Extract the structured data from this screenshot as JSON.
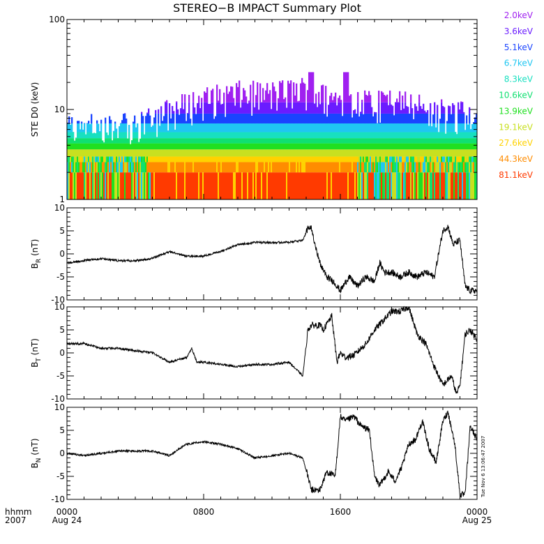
{
  "title": "STEREO−B IMPACT Summary Plot",
  "timestamp": "Tue Nov  6 13:06:47 2007",
  "bottom_axis": {
    "left_labels": [
      "hhmm",
      "2007"
    ],
    "ticks": [
      {
        "label": "0000",
        "date": "Aug 24"
      },
      {
        "label": "0800",
        "date": ""
      },
      {
        "label": "1600",
        "date": ""
      },
      {
        "label": "0000",
        "date": "Aug 25"
      }
    ]
  },
  "colors": {
    "2.0keV": "#a020f0",
    "3.6keV": "#6a1cff",
    "5.1keV": "#1a44ff",
    "6.7keV": "#1fc7f2",
    "8.3keV": "#18e0c0",
    "10.6keV": "#10e070",
    "13.9keV": "#20e020",
    "19.1keV": "#c8e020",
    "27.6keV": "#ffd200",
    "44.3keV": "#ff8c00",
    "81.1keV": "#ff3a00"
  },
  "chart_data": [
    {
      "type": "area",
      "ylabel": "STE D0 (keV)",
      "yscale": "log",
      "ylim": [
        1,
        100
      ],
      "yticks": [
        "1",
        "10",
        "100"
      ],
      "xlim_hours": [
        0,
        24
      ],
      "legend_position": "right",
      "series": [
        {
          "name": "2.0keV",
          "color": "#a020f0"
        },
        {
          "name": "3.6keV",
          "color": "#6a1cff"
        },
        {
          "name": "5.1keV",
          "color": "#1a44ff"
        },
        {
          "name": "6.7keV",
          "color": "#1fc7f2"
        },
        {
          "name": "8.3keV",
          "color": "#18e0c0"
        },
        {
          "name": "10.6keV",
          "color": "#10e070"
        },
        {
          "name": "13.9keV",
          "color": "#20e020"
        },
        {
          "name": "19.1keV",
          "color": "#c8e020"
        },
        {
          "name": "27.6keV",
          "color": "#ffd200"
        },
        {
          "name": "44.3keV",
          "color": "#ff8c00"
        },
        {
          "name": "81.1keV",
          "color": "#ff3a00"
        }
      ],
      "envelope": {
        "x": [
          0,
          4,
          6,
          8,
          10,
          12,
          14,
          15,
          16,
          18,
          20,
          22,
          24
        ],
        "y": [
          6,
          6.5,
          9,
          12,
          14,
          14,
          16,
          13,
          12,
          11,
          11,
          9,
          8
        ]
      }
    },
    {
      "type": "line",
      "ylabel": "B_R (nT)",
      "ylim": [
        -10,
        10
      ],
      "yticks": [
        "-10",
        "-5",
        "0",
        "5",
        "10"
      ],
      "xlim_hours": [
        0,
        24
      ],
      "x": [
        0,
        1,
        2,
        3,
        4,
        5,
        6,
        7,
        8,
        9,
        10,
        11,
        12,
        13,
        13.8,
        14.1,
        14.3,
        14.8,
        15.2,
        15.6,
        16,
        16.5,
        17,
        17.5,
        18,
        18.3,
        18.6,
        19,
        19.5,
        20,
        20.5,
        21,
        21.5,
        22,
        22.3,
        22.6,
        23,
        23.3,
        23.6,
        24
      ],
      "y": [
        -2,
        -1.5,
        -1,
        -1.5,
        -1.5,
        -1,
        0.5,
        -0.5,
        -0.5,
        0.5,
        2,
        2.5,
        2.5,
        2.5,
        3,
        5.5,
        5.5,
        -2,
        -5,
        -6,
        -8,
        -5,
        -7,
        -5,
        -6,
        -2,
        -4,
        -4,
        -5,
        -4,
        -5,
        -4,
        -5,
        5,
        6,
        2,
        3,
        -7,
        -8,
        -8
      ]
    },
    {
      "type": "line",
      "ylabel": "B_T (nT)",
      "ylim": [
        -10,
        10
      ],
      "yticks": [
        "-10",
        "-5",
        "0",
        "5",
        "10"
      ],
      "xlim_hours": [
        0,
        24
      ],
      "x": [
        0,
        1,
        2,
        3,
        4,
        5,
        6,
        7,
        7.3,
        7.6,
        8,
        9,
        10,
        11,
        12,
        13,
        13.8,
        14.1,
        14.3,
        14.8,
        15,
        15.5,
        15.8,
        16,
        16.3,
        16.8,
        17.5,
        18,
        18.5,
        19,
        19.5,
        20,
        20.5,
        21,
        21.5,
        22,
        22.5,
        22.8,
        23,
        23.3,
        23.6,
        24
      ],
      "y": [
        2,
        2,
        1,
        1,
        0.5,
        0,
        -2,
        -1,
        1,
        -2,
        -2,
        -2.5,
        -3,
        -2.5,
        -2.5,
        -2,
        -5,
        5,
        6,
        6,
        5,
        8,
        -2,
        0,
        -1,
        -0.5,
        2,
        5,
        7,
        9,
        9,
        10,
        4,
        2,
        -3,
        -7,
        -5,
        -9,
        -7,
        4,
        5,
        3
      ]
    },
    {
      "type": "line",
      "ylabel": "B_N (nT)",
      "ylim": [
        -10,
        10
      ],
      "yticks": [
        "-10",
        "-5",
        "0",
        "5",
        "10"
      ],
      "xlim_hours": [
        0,
        24
      ],
      "x": [
        0,
        1,
        2,
        3,
        4,
        5,
        6,
        7,
        8,
        9,
        10,
        10.5,
        11,
        12,
        13,
        13.8,
        14.1,
        14.3,
        14.8,
        15.2,
        15.7,
        16,
        16.3,
        16.8,
        17.2,
        17.7,
        18,
        18.3,
        18.8,
        19.2,
        19.6,
        20,
        20.4,
        20.8,
        21.2,
        21.6,
        22,
        22.3,
        22.7,
        23,
        23.3,
        23.6,
        24
      ],
      "y": [
        0,
        -0.5,
        0,
        0.5,
        0.5,
        0.5,
        -0.5,
        2,
        2.5,
        2,
        1,
        0,
        -1,
        -0.5,
        0,
        -1,
        -5,
        -8,
        -8,
        -4,
        -5,
        8,
        7,
        8,
        6,
        5,
        -5,
        -7,
        -4,
        -6,
        -3,
        2,
        3,
        7,
        1,
        -2,
        7,
        9,
        2,
        -9,
        -9,
        6,
        3
      ]
    }
  ]
}
